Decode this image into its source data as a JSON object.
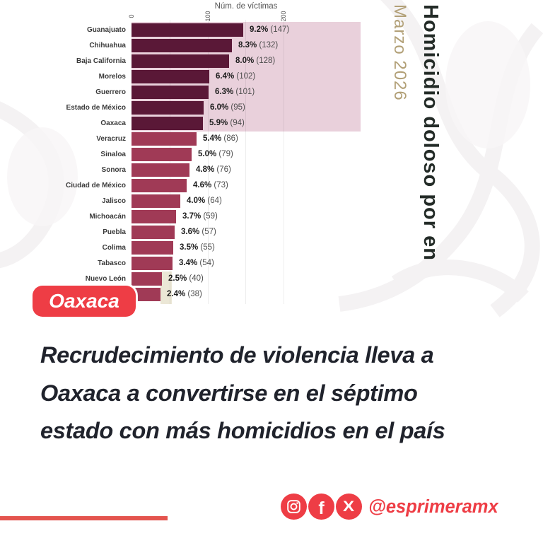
{
  "colors": {
    "bar_dark": "#5a1837",
    "bar_light": "#a03a56",
    "pink_highlight": "#e9d0db",
    "cream_highlight": "#ebe7d6",
    "red_accent": "#ee3d45",
    "red_line": "#e4544e",
    "headline_text": "#20232c",
    "chart_title_text": "#232b27",
    "date_text": "#b2a077",
    "label_text": "#3b3b3b",
    "value_text": "#1c1c1c",
    "value_paren_text": "#4e4e4e",
    "axis_text": "#555555"
  },
  "chart_data": {
    "type": "bar",
    "orientation": "horizontal",
    "title": "Homicidio doloso por en",
    "subtitle": "Marzo 2026",
    "xlabel": "Núm. de víctimas",
    "x_ticks": [
      0,
      100,
      200
    ],
    "x_gridlines": [
      50,
      100,
      150,
      200
    ],
    "xlim": [
      0,
      300
    ],
    "highlight_top_n": 7,
    "rows": [
      {
        "state": "Guanajuato",
        "pct": "9.2%",
        "victims": 147
      },
      {
        "state": "Chihuahua",
        "pct": "8.3%",
        "victims": 132
      },
      {
        "state": "Baja California",
        "pct": "8.0%",
        "victims": 128
      },
      {
        "state": "Morelos",
        "pct": "6.4%",
        "victims": 102
      },
      {
        "state": "Guerrero",
        "pct": "6.3%",
        "victims": 101
      },
      {
        "state": "Estado de México",
        "pct": "6.0%",
        "victims": 95
      },
      {
        "state": "Oaxaca",
        "pct": "5.9%",
        "victims": 94
      },
      {
        "state": "Veracruz",
        "pct": "5.4%",
        "victims": 86
      },
      {
        "state": "Sinaloa",
        "pct": "5.0%",
        "victims": 79
      },
      {
        "state": "Sonora",
        "pct": "4.8%",
        "victims": 76
      },
      {
        "state": "Ciudad de México",
        "pct": "4.6%",
        "victims": 73
      },
      {
        "state": "Jalisco",
        "pct": "4.0%",
        "victims": 64
      },
      {
        "state": "Michoacán",
        "pct": "3.7%",
        "victims": 59
      },
      {
        "state": "Puebla",
        "pct": "3.6%",
        "victims": 57
      },
      {
        "state": "Colima",
        "pct": "3.5%",
        "victims": 55
      },
      {
        "state": "Tabasco",
        "pct": "3.4%",
        "victims": 54
      },
      {
        "state": "Nuevo León",
        "pct": "2.5%",
        "victims": 40
      },
      {
        "state": "",
        "pct": "2.4%",
        "victims": 38
      }
    ]
  },
  "tag": {
    "label": "Oaxaca"
  },
  "headline": {
    "lines": [
      "Recrudecimiento de violencia lleva a",
      "Oaxaca a convertirse en el séptimo",
      "estado con más homicidios en el país"
    ]
  },
  "footer": {
    "handle": "@esprimeramx",
    "icons": [
      "instagram-icon",
      "facebook-icon",
      "x-icon"
    ]
  }
}
